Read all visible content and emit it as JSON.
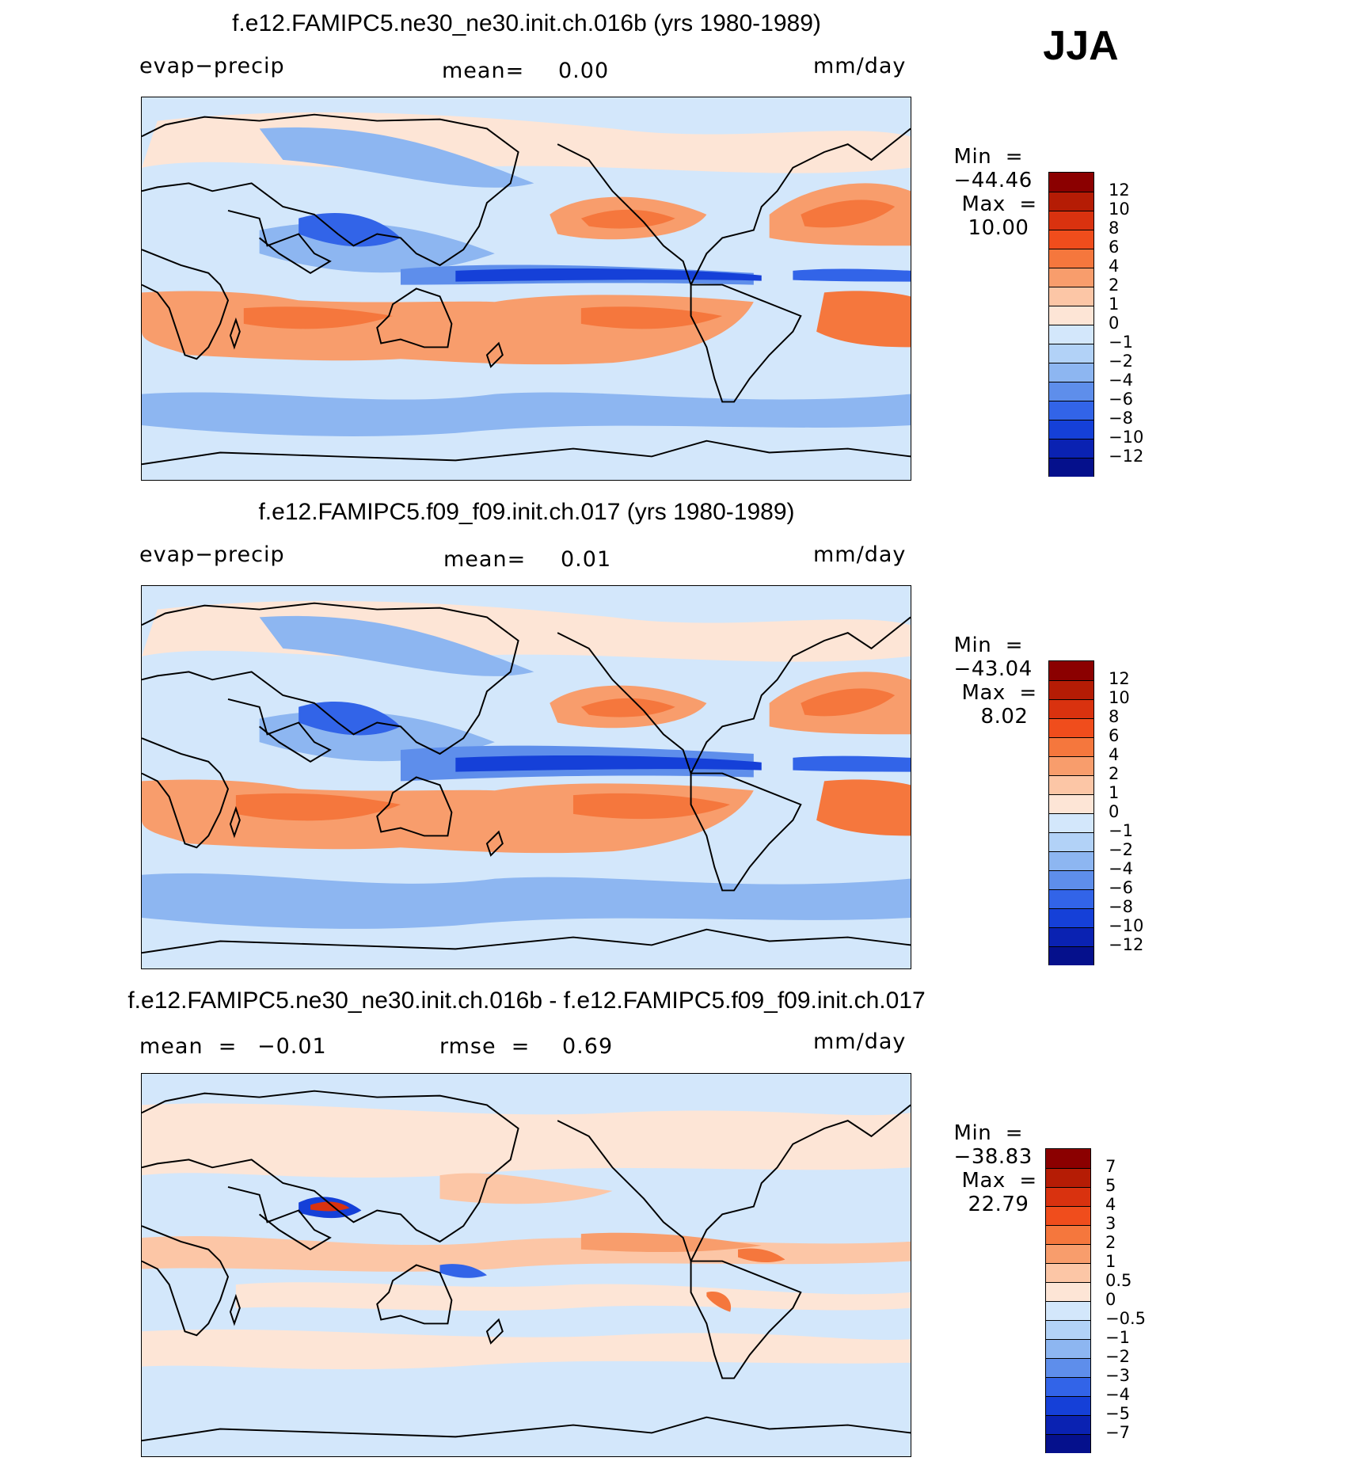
{
  "season": "JJA",
  "units": "mm/day",
  "panel1": {
    "title": "f.e12.FAMIPC5.ne30_ne30.init.ch.016b (yrs 1980-1989)",
    "variable": "evap−precip",
    "mean_label": "mean=",
    "mean_value": "0.00",
    "units": "mm/day",
    "min_label": "Min  =",
    "min_value": "−44.46",
    "max_label": "Max  =",
    "max_value": "10.00"
  },
  "panel2": {
    "title": "f.e12.FAMIPC5.f09_f09.init.ch.017 (yrs 1980-1989)",
    "variable": "evap−precip",
    "mean_label": "mean=",
    "mean_value": "0.01",
    "units": "mm/day",
    "min_label": "Min  =",
    "min_value": "−43.04",
    "max_label": "Max  =",
    "max_value": "8.02"
  },
  "panel3": {
    "title": "f.e12.FAMIPC5.ne30_ne30.init.ch.016b - f.e12.FAMIPC5.f09_f09.init.ch.017",
    "mean_label": "mean  =",
    "mean_value": "−0.01",
    "rmse_label": "rmse  =",
    "rmse_value": "0.69",
    "units": "mm/day",
    "min_label": "Min  =",
    "min_value": "−38.83",
    "max_label": "Max  =",
    "max_value": "22.79"
  },
  "colorbar_main": {
    "labels": [
      "12",
      "10",
      "8",
      "6",
      "4",
      "2",
      "1",
      "0",
      "−1",
      "−2",
      "−4",
      "−6",
      "−8",
      "−10",
      "−12"
    ],
    "colors": [
      "#8b0000",
      "#b51c05",
      "#d9320f",
      "#f04d1c",
      "#f5773d",
      "#f89d6c",
      "#fcc6a6",
      "#fde5d6",
      "#d3e7fb",
      "#b2d2f7",
      "#8db6f1",
      "#5e8eeb",
      "#3264e8",
      "#1540d8",
      "#0a22b2",
      "#05108c"
    ]
  },
  "colorbar_diff": {
    "labels": [
      "7",
      "5",
      "4",
      "3",
      "2",
      "1",
      "0.5",
      "0",
      "−0.5",
      "−1",
      "−2",
      "−3",
      "−4",
      "−5",
      "−7"
    ],
    "colors": [
      "#8b0000",
      "#b51c05",
      "#d9320f",
      "#f04d1c",
      "#f5773d",
      "#f89d6c",
      "#fcc6a6",
      "#fde5d6",
      "#d3e7fb",
      "#b2d2f7",
      "#8db6f1",
      "#5e8eeb",
      "#3264e8",
      "#1540d8",
      "#0a22b2",
      "#05108c"
    ]
  }
}
